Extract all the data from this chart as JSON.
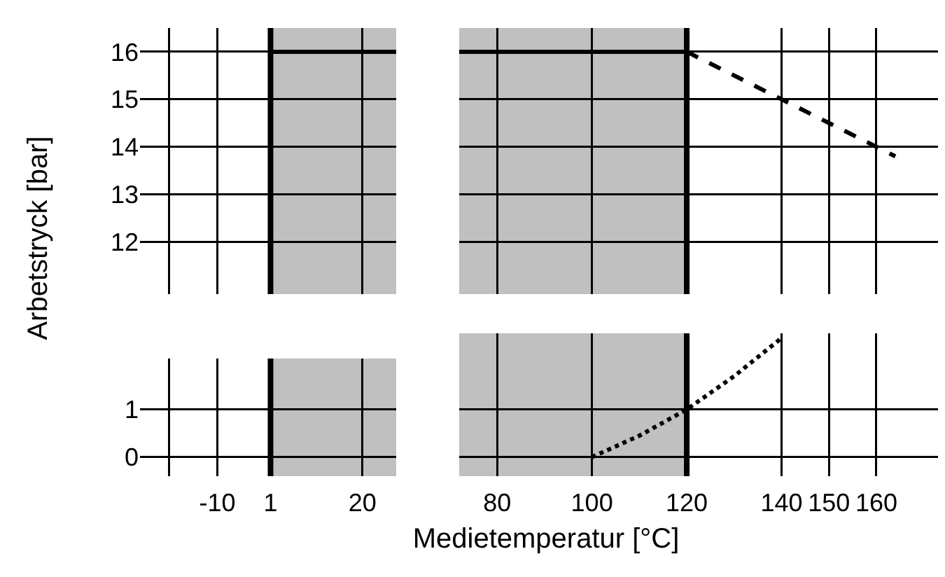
{
  "chart_data": [
    {
      "type": "line",
      "xlim": [
        -26,
        27
      ],
      "xticks": [
        -20,
        -10,
        1,
        20
      ],
      "ylim": [
        10.9,
        16.5
      ],
      "yticks": [
        12,
        13,
        14,
        15,
        16
      ],
      "tick_labels": "y",
      "grid": true,
      "bands": [
        {
          "axis": "x",
          "from": 1,
          "to": 27,
          "color": "#c0c0c0"
        }
      ],
      "ref_lines": [
        {
          "axis": "x",
          "value": 1,
          "color": "#000000"
        }
      ],
      "series": [
        {
          "type": "line",
          "x": [
            1,
            27
          ],
          "values": [
            16,
            16
          ],
          "color": "#000000",
          "line_style": "solid"
        }
      ]
    },
    {
      "type": "line",
      "xlim": [
        72,
        173
      ],
      "xticks": [
        80,
        100,
        120,
        140,
        150,
        160
      ],
      "ylim": [
        10.9,
        16.5
      ],
      "yticks": [
        12,
        13,
        14,
        15,
        16
      ],
      "tick_labels": false,
      "grid": true,
      "bands": [
        {
          "axis": "x",
          "from": 72,
          "to": 120,
          "color": "#c0c0c0"
        }
      ],
      "ref_lines": [
        {
          "axis": "x",
          "value": 120,
          "color": "#000000"
        }
      ],
      "series": [
        {
          "type": "line",
          "x": [
            72,
            120
          ],
          "values": [
            16,
            16
          ],
          "color": "#000000",
          "line_style": "solid"
        },
        {
          "type": "line",
          "x": [
            120,
            164
          ],
          "values": [
            16,
            13.8
          ],
          "color": "#000000",
          "line_style": "dashed"
        }
      ]
    },
    {
      "type": "line",
      "xlabel": "Medietemperatur [°C]",
      "ylabel": "Arbetstryck [bar]",
      "xlim": [
        -26,
        27
      ],
      "xticks": [
        {
          "value": -20,
          "label": null
        },
        -10,
        1,
        20
      ],
      "ylim": [
        -0.4,
        2.06
      ],
      "yticks": [
        0,
        1
      ],
      "grid": true,
      "bands": [
        {
          "axis": "x",
          "from": 1,
          "to": 27,
          "color": "#c0c0c0"
        }
      ],
      "ref_lines": [
        {
          "axis": "x",
          "value": 1,
          "color": "#000000"
        }
      ]
    },
    {
      "type": "line",
      "xlim": [
        72,
        173
      ],
      "xticks": [
        80,
        100,
        120,
        140,
        150,
        160
      ],
      "ylim": [
        -0.4,
        2.6
      ],
      "yticks": [
        0,
        1
      ],
      "tick_labels": "x",
      "grid": true,
      "bands": [
        {
          "axis": "x",
          "from": 72,
          "to": 120,
          "color": "#c0c0c0"
        }
      ],
      "ref_lines": [
        {
          "axis": "x",
          "value": 120,
          "color": "#000000"
        }
      ],
      "series": [
        {
          "type": "line",
          "x": [
            100,
            110,
            120,
            130,
            140
          ],
          "values": [
            0,
            0.45,
            1,
            1.7,
            2.5
          ],
          "color": "#000000",
          "line_style": "dotted"
        }
      ]
    }
  ]
}
